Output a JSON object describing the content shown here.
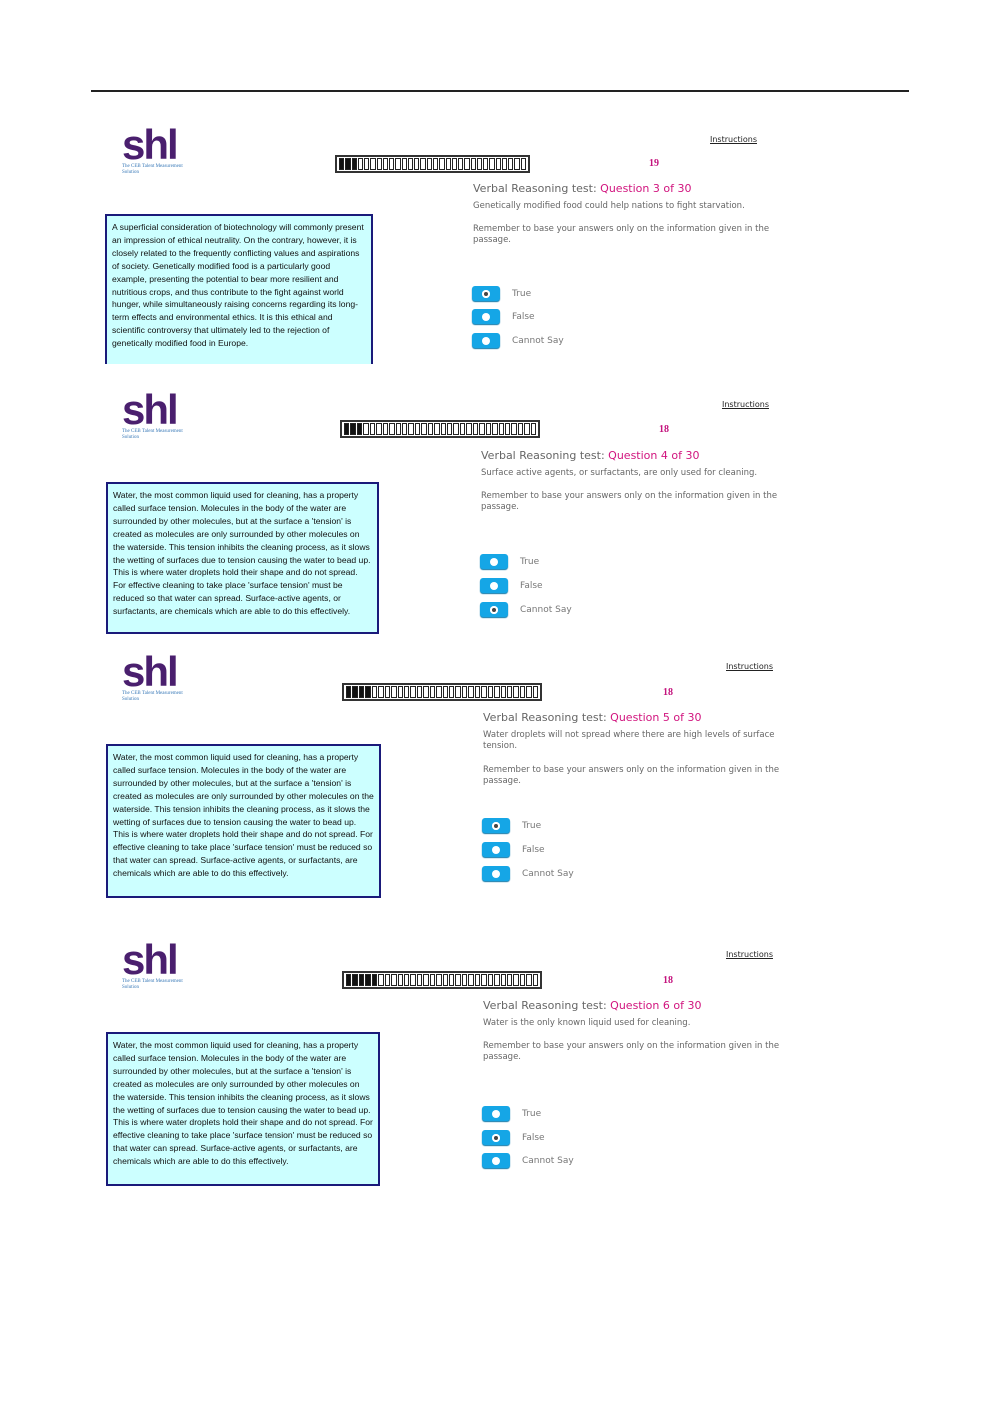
{
  "logo": {
    "mark": "shl",
    "tagline": "The CEB Talent Measurement Solution"
  },
  "instructions_label": "Instructions",
  "test_label": "Verbal Reasoning test: ",
  "remember": "Remember to base your answers only on the information given in the passage.",
  "options": [
    "True",
    "False",
    "Cannot Say"
  ],
  "colors": {
    "accent": "#d1147e",
    "radio": "#15a6e6",
    "passage_bg": "#ccffff",
    "logo": "#4a1f6e"
  },
  "screens": [
    {
      "counter": "19",
      "question_label": "Question 3 of 30",
      "question": "Genetically modified food could help nations to fight starvation.",
      "selected": "True",
      "timer_filled": 3,
      "passage": "A superficial consideration of biotechnology will commonly present an impression of ethical neutrality. On the contrary, however, it is closely related to the frequently conflicting values and aspirations of society. Genetically modified food is a particularly good example, presenting the potential to bear more resilient and nutritious crops, and thus contribute to the fight against world hunger, while simultaneously raising concerns regarding its long-term effects and environmental ethics. It is this ethical and scientific controversy that ultimately led to the rejection of genetically modified food in Europe."
    },
    {
      "counter": "18",
      "question_label": "Question 4 of 30",
      "question": "Surface active agents, or surfactants, are only used for cleaning.",
      "selected": "Cannot Say",
      "timer_filled": 3,
      "passage": "Water, the most common liquid used for cleaning, has a property called surface tension. Molecules in the body of the water are surrounded by other molecules, but at the surface a 'tension' is created as molecules are only surrounded by other molecules on the waterside. This tension inhibits the cleaning process, as it slows the wetting of surfaces due to tension causing the water to bead up. This is where water droplets hold their shape and do not spread. For effective cleaning to take place 'surface tension' must be reduced so that water can spread. Surface-active agents, or surfactants, are chemicals which are able to do this effectively."
    },
    {
      "counter": "18",
      "question_label": "Question 5 of 30",
      "question": "Water droplets will not spread where there are high levels of surface tension.",
      "selected": "True",
      "timer_filled": 4,
      "passage": "Water, the most common liquid used for cleaning, has a property called surface tension. Molecules in the body of the water are surrounded by other molecules, but at the surface a 'tension' is created as molecules are only surrounded by other molecules on the waterside. This tension inhibits the cleaning process, as it slows the wetting of surfaces due to tension causing the water to bead up. This is where water droplets hold their shape and do not spread. For effective cleaning to take place 'surface tension' must be reduced so that water can spread. Surface-active agents, or surfactants, are chemicals which are able to do this effectively."
    },
    {
      "counter": "18",
      "question_label": "Question 6 of 30",
      "question": "Water is the only known liquid used for cleaning.",
      "selected": "False",
      "timer_filled": 5,
      "passage": "Water, the most common liquid used for cleaning, has a property called surface tension. Molecules in the body of the water are surrounded by other molecules, but at the surface a 'tension' is created as molecules are only surrounded by other molecules on the waterside. This tension inhibits the cleaning process, as it slows the wetting of surfaces due to tension causing the water to bead up. This is where water droplets hold their shape and do not spread. For effective cleaning to take place 'surface tension' must be reduced so that water can spread. Surface-active agents, or surfactants, are chemicals which are able to do this effectively."
    }
  ]
}
